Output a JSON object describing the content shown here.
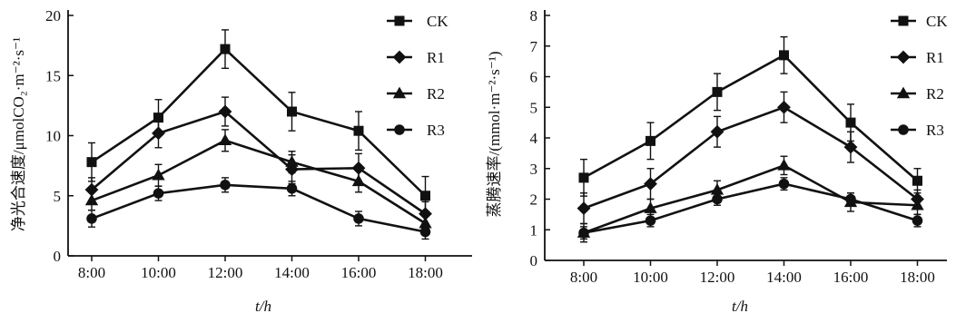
{
  "chart_data": [
    {
      "type": "line",
      "categories": [
        "8:00",
        "10:00",
        "12:00",
        "14:00",
        "16:00",
        "18:00"
      ],
      "xlabel": "t/h",
      "ylabel": "净光合速度/μmolCO₂·m⁻²·s⁻¹",
      "ylim": [
        0,
        20
      ],
      "yticks": [
        0,
        5,
        10,
        15,
        20
      ],
      "grid": false,
      "legend_position": "top-right",
      "error_bars": true,
      "series": [
        {
          "name": "CK",
          "marker": "square",
          "values": [
            7.8,
            11.5,
            17.2,
            12.0,
            10.4,
            5.0
          ],
          "errors": [
            1.6,
            1.5,
            1.6,
            1.6,
            1.6,
            1.6
          ]
        },
        {
          "name": "R1",
          "marker": "diamond",
          "values": [
            5.5,
            10.2,
            12.0,
            7.2,
            7.3,
            3.5
          ],
          "errors": [
            1.0,
            1.2,
            1.2,
            1.2,
            1.2,
            1.0
          ]
        },
        {
          "name": "R2",
          "marker": "triangle",
          "values": [
            4.6,
            6.7,
            9.6,
            7.8,
            6.2,
            2.7
          ],
          "errors": [
            0.8,
            0.9,
            0.9,
            0.9,
            0.9,
            0.7
          ]
        },
        {
          "name": "R3",
          "marker": "circle",
          "values": [
            3.1,
            5.2,
            5.9,
            5.6,
            3.1,
            2.0
          ],
          "errors": [
            0.7,
            0.6,
            0.6,
            0.6,
            0.6,
            0.6
          ]
        }
      ]
    },
    {
      "type": "line",
      "categories": [
        "8:00",
        "10:00",
        "12:00",
        "14:00",
        "16:00",
        "18:00"
      ],
      "xlabel": "t/h",
      "ylabel": "蒸腾速率/(mmol·m⁻²·s⁻¹)",
      "ylim": [
        0,
        8
      ],
      "yticks": [
        0,
        1,
        2,
        3,
        4,
        5,
        6,
        7,
        8
      ],
      "grid": false,
      "legend_position": "top-right",
      "error_bars": true,
      "series": [
        {
          "name": "CK",
          "marker": "square",
          "values": [
            2.7,
            3.9,
            5.5,
            6.7,
            4.5,
            2.6
          ],
          "errors": [
            0.6,
            0.6,
            0.6,
            0.6,
            0.6,
            0.4
          ]
        },
        {
          "name": "R1",
          "marker": "diamond",
          "values": [
            1.7,
            2.5,
            4.2,
            5.0,
            3.7,
            2.0
          ],
          "errors": [
            0.5,
            0.5,
            0.5,
            0.5,
            0.5,
            0.3
          ]
        },
        {
          "name": "R2",
          "marker": "triangle",
          "values": [
            0.9,
            1.7,
            2.3,
            3.1,
            1.9,
            1.8
          ],
          "errors": [
            0.3,
            0.3,
            0.3,
            0.3,
            0.3,
            0.3
          ]
        },
        {
          "name": "R3",
          "marker": "circle",
          "values": [
            0.9,
            1.3,
            2.0,
            2.5,
            2.0,
            1.3
          ],
          "errors": [
            0.2,
            0.2,
            0.2,
            0.2,
            0.2,
            0.2
          ]
        }
      ]
    }
  ]
}
